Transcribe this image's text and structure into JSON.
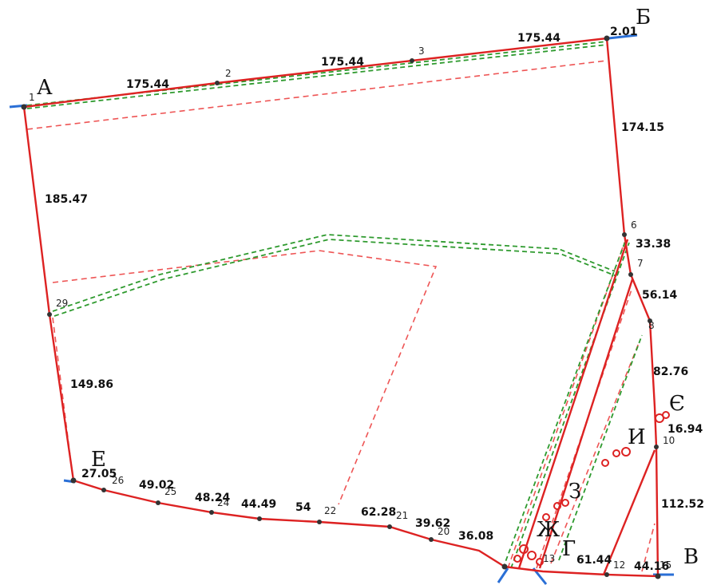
{
  "corner_labels": {
    "a": "А",
    "b": "Б",
    "v": "В",
    "g": "Г",
    "e": "Е",
    "ye": "Є",
    "zh": "Ж",
    "z": "З",
    "i": "И"
  },
  "segment_labels": {
    "top_left": "175.44",
    "top_mid": "175.44",
    "top_right": "175.44",
    "top_corner": "2.01",
    "left_upper": "185.47",
    "left_lower": "149.86",
    "right_upper": "174.15",
    "right_6_7": "33.38",
    "right_7_8": "56.14",
    "right_8_9": "82.76",
    "right_ye": "16.94",
    "right_lower": "112.52",
    "bottom_12": "61.44",
    "bottom_15": "44.16",
    "bottom_27": "27.05",
    "bottom_25": "49.02",
    "bottom_24": "48.24",
    "bottom_23": "44.49",
    "bottom_54": "54",
    "bottom_21": "62.28",
    "bottom_20": "39.62",
    "bottom_19": "36.08"
  },
  "point_labels": {
    "p1": "1",
    "p2": "2",
    "p3": "3",
    "p6": "6",
    "p7": "7",
    "p8": "8",
    "p10": "10",
    "p12": "12",
    "p15": "15",
    "p20": "20",
    "p21": "21",
    "p22": "22",
    "p24": "24",
    "p25": "25",
    "p26": "26",
    "p29": "29",
    "p13": "13"
  },
  "colors": {
    "boundary": "#dd2222",
    "dashed_red": "#ee5555",
    "dashed_green": "#2e9a2e",
    "axis_blue": "#2a6fd6",
    "vertex": "#333333"
  }
}
